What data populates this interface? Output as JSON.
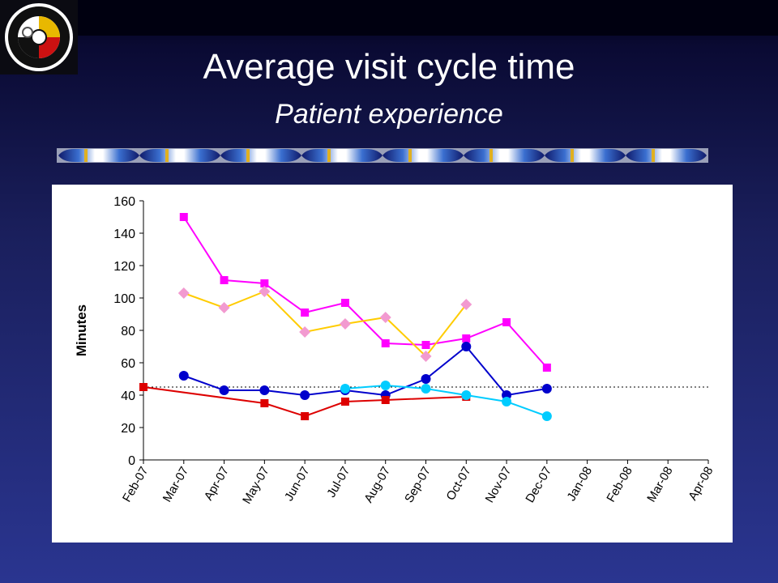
{
  "slide": {
    "title": "Average visit cycle time",
    "subtitle": "Patient experience"
  },
  "icons": [
    "organization-seal-logo",
    "decorative-band"
  ],
  "chart_data": {
    "type": "line",
    "xlabel": "",
    "ylabel": "Minutes",
    "ylim": [
      0,
      160
    ],
    "yticks": [
      0,
      20,
      40,
      60,
      80,
      100,
      120,
      140,
      160
    ],
    "categories": [
      "Feb-07",
      "Mar-07",
      "Apr-07",
      "May-07",
      "Jun-07",
      "Jul-07",
      "Aug-07",
      "Sep-07",
      "Oct-07",
      "Nov-07",
      "Dec-07",
      "Jan-08",
      "Feb-08",
      "Mar-08",
      "Apr-08"
    ],
    "reference_line": {
      "value": 45,
      "style": "dotted"
    },
    "grid": false,
    "legend": "none",
    "series": [
      {
        "color": "#ff00ff",
        "marker": "square",
        "values": [
          null,
          150,
          111,
          109,
          91,
          97,
          72,
          71,
          75,
          85,
          57,
          null,
          null,
          null,
          null
        ]
      },
      {
        "color": "#ffcc00",
        "marker": "diamond",
        "marker_color": "#f29ad0",
        "values": [
          null,
          103,
          94,
          104,
          79,
          84,
          88,
          64,
          96,
          null,
          null,
          null,
          null,
          null,
          null
        ]
      },
      {
        "color": "#0000cc",
        "marker": "circle",
        "values": [
          null,
          52,
          43,
          43,
          40,
          43,
          40,
          50,
          70,
          40,
          44,
          null,
          null,
          null,
          null
        ]
      },
      {
        "color": "#dd0000",
        "marker": "square",
        "points": [
          [
            0,
            45
          ],
          [
            3,
            35
          ],
          [
            4,
            27
          ],
          [
            5,
            36
          ],
          [
            6,
            37
          ],
          [
            8,
            39
          ]
        ]
      },
      {
        "color": "#00ccff",
        "marker": "circle",
        "values": [
          null,
          null,
          null,
          null,
          null,
          44,
          46,
          44,
          40,
          36,
          27,
          null,
          null,
          null,
          null
        ]
      }
    ]
  }
}
